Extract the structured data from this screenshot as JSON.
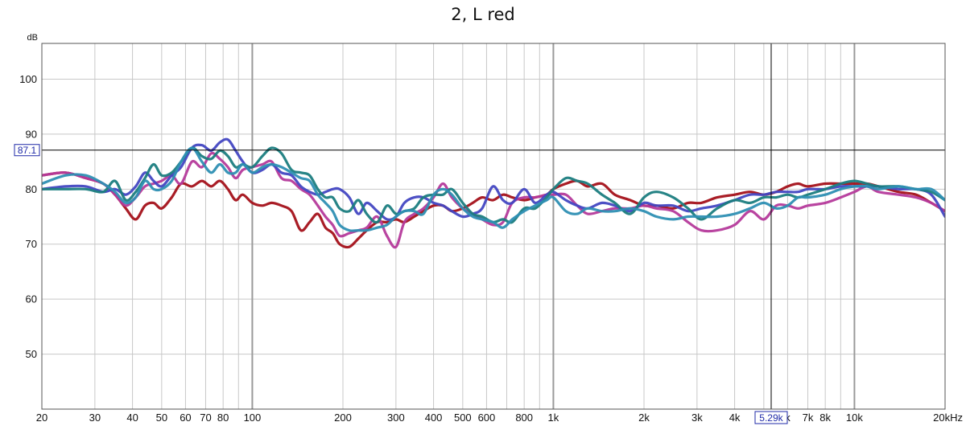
{
  "chart_data": {
    "type": "line",
    "title": "2, L red",
    "ylabel": "dB",
    "xunit": "kHz",
    "xscale": "log",
    "xlim": [
      20,
      20000
    ],
    "ylim": [
      40,
      106.5
    ],
    "grid": true,
    "x_ticks": [
      {
        "v": 20,
        "label": "20",
        "major": false
      },
      {
        "v": 30,
        "label": "30",
        "major": false
      },
      {
        "v": 40,
        "label": "40",
        "major": false
      },
      {
        "v": 50,
        "label": "50",
        "major": false
      },
      {
        "v": 60,
        "label": "60",
        "major": false
      },
      {
        "v": 70,
        "label": "70",
        "major": false
      },
      {
        "v": 80,
        "label": "80",
        "major": false
      },
      {
        "v": 90,
        "label": "",
        "major": false
      },
      {
        "v": 100,
        "label": "100",
        "major": true
      },
      {
        "v": 200,
        "label": "200",
        "major": false
      },
      {
        "v": 300,
        "label": "300",
        "major": false
      },
      {
        "v": 400,
        "label": "400",
        "major": false
      },
      {
        "v": 500,
        "label": "500",
        "major": false
      },
      {
        "v": 600,
        "label": "600",
        "major": false
      },
      {
        "v": 700,
        "label": "",
        "major": false
      },
      {
        "v": 800,
        "label": "800",
        "major": false
      },
      {
        "v": 900,
        "label": "",
        "major": false
      },
      {
        "v": 1000,
        "label": "1k",
        "major": true
      },
      {
        "v": 2000,
        "label": "2k",
        "major": false
      },
      {
        "v": 3000,
        "label": "3k",
        "major": false
      },
      {
        "v": 4000,
        "label": "4k",
        "major": false
      },
      {
        "v": 5000,
        "label": "",
        "major": false
      },
      {
        "v": 6000,
        "label": "k",
        "major": false
      },
      {
        "v": 7000,
        "label": "7k",
        "major": false
      },
      {
        "v": 8000,
        "label": "8k",
        "major": false
      },
      {
        "v": 9000,
        "label": "",
        "major": false
      },
      {
        "v": 10000,
        "label": "10k",
        "major": true
      },
      {
        "v": 20000,
        "label": "20kHz",
        "major": false
      }
    ],
    "y_ticks": [
      50,
      60,
      70,
      80,
      90,
      100
    ],
    "cursor": {
      "x": 5290,
      "y": 87.1,
      "x_label": "5.29k",
      "y_label": "87.1"
    },
    "colors": {
      "cursor_box": "#1f2aa8",
      "grid": "#c8c8c8",
      "grid_major": "#9a9a9a"
    },
    "series": [
      {
        "color": "#a4111a",
        "x": [
          20,
          24,
          28,
          32,
          35,
          38,
          41,
          44,
          47,
          50,
          54,
          58,
          63,
          68,
          73,
          78,
          83,
          88,
          93,
          100,
          108,
          116,
          125,
          135,
          145,
          155,
          165,
          175,
          185,
          195,
          210,
          225,
          240,
          260,
          280,
          300,
          320,
          345,
          370,
          400,
          430,
          460,
          500,
          540,
          580,
          630,
          680,
          730,
          800,
          870,
          950,
          1000,
          1100,
          1200,
          1300,
          1450,
          1600,
          1800,
          2000,
          2200,
          2500,
          2800,
          3100,
          3500,
          4000,
          4500,
          5000,
          5500,
          6000,
          6500,
          7000,
          8000,
          9000,
          10000,
          11000,
          12000,
          14000,
          16000,
          18000,
          20000
        ],
        "y": [
          82.5,
          83,
          82,
          81,
          79,
          76.5,
          74.5,
          77,
          77.5,
          76.5,
          78.5,
          81,
          80.5,
          81.5,
          80.5,
          81.5,
          80,
          78,
          79,
          77.5,
          77,
          77.5,
          77,
          76,
          72.5,
          74,
          75.5,
          73,
          72,
          70,
          69.5,
          71,
          72.5,
          74,
          74,
          74.5,
          74,
          75,
          76,
          77,
          77,
          76,
          76.5,
          77.5,
          78.5,
          78,
          79,
          78.5,
          78,
          78.5,
          79,
          80,
          81,
          81.5,
          80.5,
          81,
          79,
          78,
          77,
          77,
          76.5,
          77.5,
          77.5,
          78.5,
          79,
          79.5,
          79,
          79.5,
          80.5,
          81,
          80.5,
          81,
          81,
          81,
          81,
          80.5,
          79.5,
          79,
          77.5,
          76
        ]
      },
      {
        "color": "#b53a9b",
        "x": [
          20,
          24,
          28,
          32,
          35,
          38,
          41,
          44,
          47,
          50,
          54,
          58,
          63,
          68,
          73,
          78,
          83,
          88,
          93,
          100,
          108,
          116,
          125,
          135,
          145,
          155,
          165,
          175,
          185,
          195,
          210,
          225,
          240,
          260,
          280,
          300,
          320,
          345,
          370,
          400,
          430,
          460,
          500,
          540,
          580,
          630,
          680,
          730,
          800,
          870,
          950,
          1000,
          1100,
          1200,
          1300,
          1450,
          1600,
          1800,
          2000,
          2200,
          2500,
          2800,
          3100,
          3500,
          4000,
          4500,
          5000,
          5500,
          6000,
          6500,
          7000,
          8000,
          9000,
          10000,
          11000,
          12000,
          14000,
          16000,
          18000,
          20000
        ],
        "y": [
          82.5,
          83,
          82,
          81,
          79,
          77,
          78.5,
          80.5,
          81,
          81.5,
          82.5,
          81,
          85,
          84,
          86.5,
          85.5,
          84,
          82,
          83.5,
          84,
          84.5,
          85,
          82,
          81.5,
          80,
          79,
          77,
          75,
          73.5,
          71.5,
          72,
          72.5,
          73,
          75,
          71.5,
          69.5,
          74,
          75.5,
          76.5,
          78.5,
          81,
          78.5,
          76.5,
          75.5,
          74.5,
          73.5,
          74,
          77.5,
          78.5,
          78.5,
          79,
          79,
          79,
          77,
          75.5,
          76,
          76.5,
          76.5,
          77,
          76.5,
          76,
          74,
          72.5,
          72.5,
          73.5,
          76,
          74.5,
          77,
          77,
          76.5,
          77,
          77.5,
          78.5,
          79.5,
          80.5,
          79.5,
          79,
          78.5,
          77.5,
          76
        ]
      },
      {
        "color": "#4347c2",
        "x": [
          20,
          24,
          28,
          32,
          35,
          38,
          41,
          44,
          47,
          50,
          54,
          58,
          63,
          68,
          73,
          78,
          83,
          88,
          93,
          100,
          108,
          116,
          125,
          135,
          145,
          155,
          165,
          175,
          185,
          195,
          210,
          225,
          240,
          260,
          280,
          300,
          320,
          345,
          370,
          400,
          430,
          460,
          500,
          540,
          580,
          630,
          680,
          730,
          800,
          870,
          950,
          1000,
          1100,
          1200,
          1300,
          1450,
          1600,
          1800,
          2000,
          2200,
          2500,
          2800,
          3100,
          3500,
          4000,
          4500,
          5000,
          5500,
          6000,
          6500,
          7000,
          8000,
          9000,
          10000,
          11000,
          12000,
          14000,
          16000,
          18000,
          20000
        ],
        "y": [
          80,
          80.5,
          80.5,
          79.5,
          80,
          79,
          80.5,
          83,
          81.5,
          80.5,
          82.5,
          84,
          87.5,
          88,
          87,
          88.5,
          89,
          87,
          85,
          83,
          83.5,
          84.5,
          83,
          82.5,
          80.5,
          79.5,
          79,
          79.5,
          80,
          80,
          78.5,
          75.5,
          77.5,
          76,
          74.5,
          75,
          77.5,
          78.5,
          78.5,
          77.5,
          77,
          76,
          75,
          75.5,
          76.5,
          80.5,
          78,
          77.5,
          80,
          77.5,
          79,
          79.5,
          78,
          77,
          76.5,
          77.5,
          77,
          76,
          77.5,
          77,
          77,
          76,
          76.5,
          77,
          78,
          79,
          79,
          79.5,
          79.5,
          79.5,
          80,
          80,
          80.5,
          80.5,
          80.5,
          80.5,
          80,
          80,
          79,
          75
        ]
      },
      {
        "color": "#1b7d7f",
        "x": [
          20,
          24,
          28,
          32,
          35,
          38,
          41,
          44,
          47,
          50,
          54,
          58,
          63,
          68,
          73,
          78,
          83,
          88,
          93,
          100,
          108,
          116,
          125,
          135,
          145,
          155,
          165,
          175,
          185,
          195,
          210,
          225,
          240,
          260,
          280,
          300,
          320,
          345,
          370,
          400,
          430,
          460,
          500,
          540,
          580,
          630,
          680,
          730,
          800,
          870,
          950,
          1000,
          1100,
          1200,
          1300,
          1450,
          1600,
          1800,
          2000,
          2200,
          2500,
          2800,
          3100,
          3500,
          4000,
          4500,
          5000,
          5500,
          6000,
          6500,
          7000,
          8000,
          9000,
          10000,
          11000,
          12000,
          14000,
          16000,
          18000,
          20000
        ],
        "y": [
          80,
          80,
          80,
          79.5,
          81.5,
          78,
          79.5,
          82,
          84.5,
          82.5,
          83,
          85,
          87.5,
          86,
          85.5,
          87,
          86,
          84,
          84.5,
          84,
          86,
          87.5,
          86.5,
          83.5,
          83,
          82.5,
          80,
          78.5,
          78.5,
          76.5,
          76,
          78,
          75.5,
          74,
          77,
          75.5,
          76,
          76.5,
          78.5,
          79,
          79,
          80,
          77.5,
          75.5,
          75,
          74,
          74.5,
          74,
          76.5,
          76.5,
          78.5,
          80,
          82,
          81.5,
          81,
          79,
          77.5,
          75.5,
          78.5,
          79.5,
          78.5,
          76.5,
          74.5,
          76.5,
          78,
          77.5,
          78.5,
          78.5,
          79,
          78.5,
          79,
          80,
          81,
          81.5,
          81,
          80.5,
          80.5,
          80,
          79.5,
          78
        ]
      },
      {
        "color": "#2e8fb3",
        "x": [
          20,
          24,
          28,
          32,
          35,
          38,
          41,
          44,
          47,
          50,
          54,
          58,
          63,
          68,
          73,
          78,
          83,
          88,
          93,
          100,
          108,
          116,
          125,
          135,
          145,
          155,
          165,
          175,
          185,
          195,
          210,
          225,
          240,
          260,
          280,
          300,
          320,
          345,
          370,
          400,
          430,
          460,
          500,
          540,
          580,
          630,
          680,
          730,
          800,
          870,
          950,
          1000,
          1100,
          1200,
          1300,
          1450,
          1600,
          1800,
          2000,
          2200,
          2500,
          2800,
          3100,
          3500,
          4000,
          4500,
          5000,
          5500,
          6000,
          6500,
          7000,
          8000,
          9000,
          10000,
          11000,
          12000,
          14000,
          16000,
          18000,
          20000
        ],
        "y": [
          81,
          82.5,
          82.5,
          81,
          79.5,
          77.5,
          78.5,
          81.5,
          80,
          80,
          81.5,
          85,
          87.5,
          85,
          83,
          84.5,
          83,
          83,
          84.5,
          83,
          84,
          84.5,
          84,
          83,
          82,
          81.5,
          79,
          77.5,
          76,
          73.5,
          72.5,
          72.5,
          72.5,
          73,
          73.5,
          75,
          76,
          76,
          75.5,
          79,
          80,
          79,
          76.5,
          75,
          74.5,
          74,
          73,
          74.5,
          76,
          77,
          78,
          78.5,
          76,
          75.5,
          76.5,
          76,
          76,
          76.5,
          76,
          75,
          74.5,
          75,
          75,
          75,
          75.5,
          76.5,
          77.5,
          76.5,
          77,
          78.5,
          78.5,
          79,
          80,
          80.5,
          80.5,
          80,
          80.5,
          80,
          80,
          78
        ]
      }
    ]
  }
}
